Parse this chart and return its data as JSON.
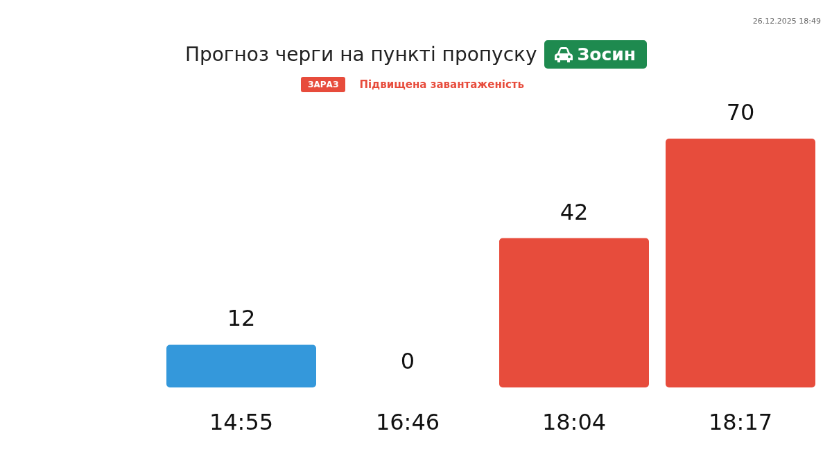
{
  "chart_data": {
    "type": "bar",
    "title": "Прогноз черги на пункті пропуску",
    "annotations": [
      "Зосин",
      "ЗАРАЗ",
      "Підвищена завантаженість",
      "26.12.2025 18:49"
    ],
    "categories": [
      "14:55",
      "16:46",
      "18:04",
      "18:17"
    ],
    "values": [
      12,
      0,
      42,
      70
    ],
    "colors": [
      "#3498db",
      "#3498db",
      "#e74c3c",
      "#e74c3c"
    ],
    "data_labels": true,
    "grid": false
  }
}
